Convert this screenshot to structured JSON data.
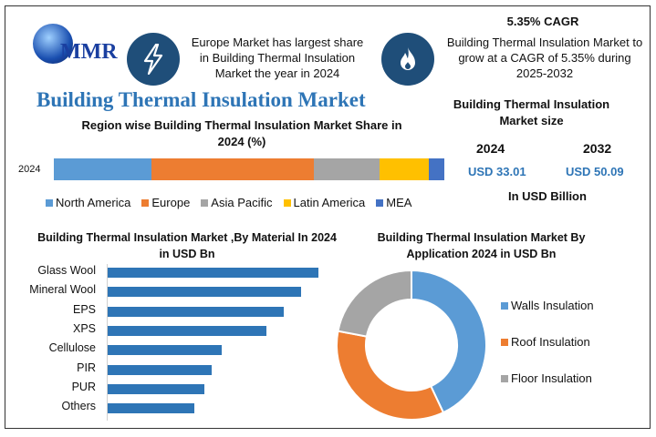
{
  "logo": {
    "text": "MMR"
  },
  "header": {
    "europe_text": "Europe Market has largest share in Building Thermal Insulation Market the year in 2024",
    "cagr_title": "5.35% CAGR",
    "cagr_text": "Building Thermal Insulation Market to grow at a CAGR of 5.35% during 2025-2032"
  },
  "title": "Building Thermal Insulation Market",
  "market_size": {
    "title": "Building Thermal Insulation Market size",
    "year1": "2024",
    "value1": "USD 33.01",
    "year2": "2032",
    "value2": "USD 50.09",
    "unit": "In USD Billion"
  },
  "colors": {
    "blue": "#5b9bd5",
    "orange": "#ed7d31",
    "gray": "#a5a5a5",
    "yellow": "#ffc000",
    "navy": "#4472c4",
    "bar": "#2e75b6",
    "title": "#2e75b6"
  },
  "chart_data": [
    {
      "type": "bar",
      "stacked": true,
      "orientation": "horizontal",
      "title": "Region wise Building Thermal Insulation Market Share in 2024 (%)",
      "categories": [
        "2024"
      ],
      "series": [
        {
          "name": "North America",
          "values": [
            25
          ]
        },
        {
          "name": "Europe",
          "values": [
            41.5
          ]
        },
        {
          "name": "Asia Pacific",
          "values": [
            17
          ]
        },
        {
          "name": "Latin America",
          "values": [
            12.5
          ]
        },
        {
          "name": "MEA",
          "values": [
            4
          ]
        }
      ],
      "legend": "bottom"
    },
    {
      "type": "bar",
      "orientation": "horizontal",
      "title": "Building Thermal Insulation Market ,By Material In 2024 in USD Bn",
      "categories": [
        "Glass Wool",
        "Mineral Wool",
        "EPS",
        "XPS",
        "Cellulose",
        "PIR",
        "PUR",
        "Others"
      ],
      "values": [
        6.1,
        5.6,
        5.1,
        4.6,
        3.3,
        3.0,
        2.8,
        2.5
      ]
    },
    {
      "type": "pie",
      "donut": true,
      "title": "Building Thermal Insulation Market  By Application 2024 in USD Bn",
      "categories": [
        "Walls Insulation",
        "Roof Insulation",
        "Floor Insulation"
      ],
      "values": [
        43,
        35,
        22
      ],
      "legend": "right"
    }
  ]
}
